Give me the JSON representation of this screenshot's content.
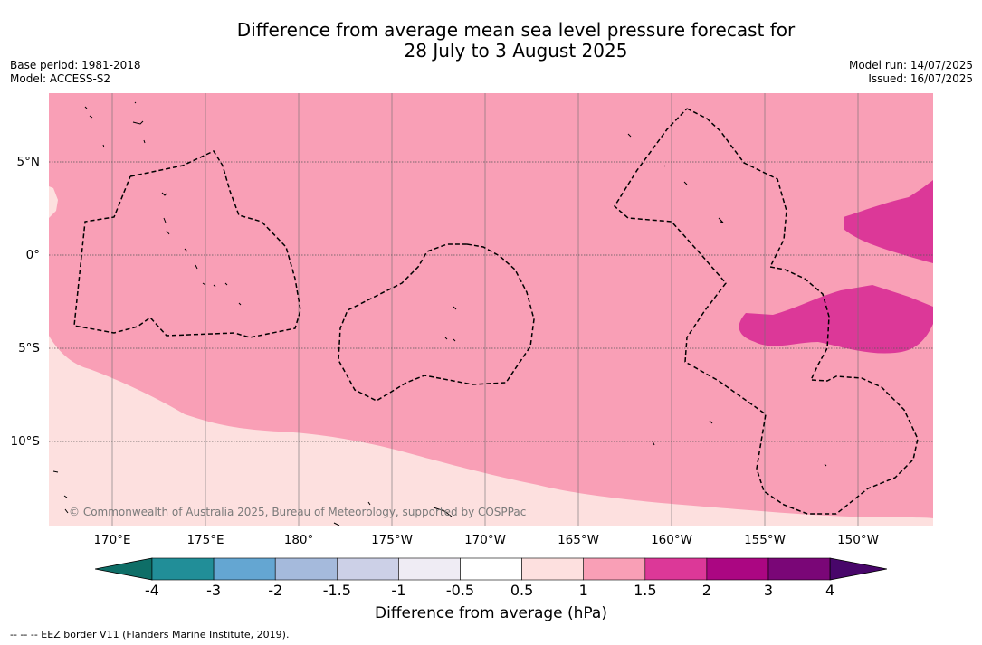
{
  "title": {
    "line1": "Difference from average mean sea level pressure forecast for",
    "line2": "28 July to 3 August 2025"
  },
  "meta": {
    "base_period": "Base period: 1981-2018",
    "model": "Model: ACCESS-S2",
    "model_run": "Model run: 14/07/2025",
    "issued": "Issued: 16/07/2025"
  },
  "map": {
    "copyright": "© Commonwealth of Australia 2025, Bureau of Meteorology, supported by COSPPac",
    "lon_labels": [
      "170°E",
      "175°E",
      "180°",
      "175°W",
      "170°W",
      "165°W",
      "160°W",
      "155°W",
      "150°W"
    ],
    "lat_labels": [
      "5°N",
      "0°",
      "5°S",
      "10°S"
    ],
    "colors": {
      "band_05_1": "#fde0df",
      "band_1_15": "#f99fb6",
      "band_15_2": "#dc3898"
    }
  },
  "colorbar": {
    "title": "Difference from average (hPa)",
    "tick_labels": [
      "-4",
      "-3",
      "-2",
      "-1.5",
      "-1",
      "-0.5",
      "0.5",
      "1",
      "1.5",
      "2",
      "3",
      "4"
    ],
    "colors": [
      "#0e6e67",
      "#218e98",
      "#64a6d2",
      "#a5badc",
      "#ccd0e7",
      "#efecf4",
      "#ffffff",
      "#fde0df",
      "#f99fb6",
      "#dc3898",
      "#ab0682",
      "#7a0677",
      "#48066a"
    ]
  },
  "footer": "--  --  -- EEZ border V11 (Flanders Marine Institute, 2019)."
}
